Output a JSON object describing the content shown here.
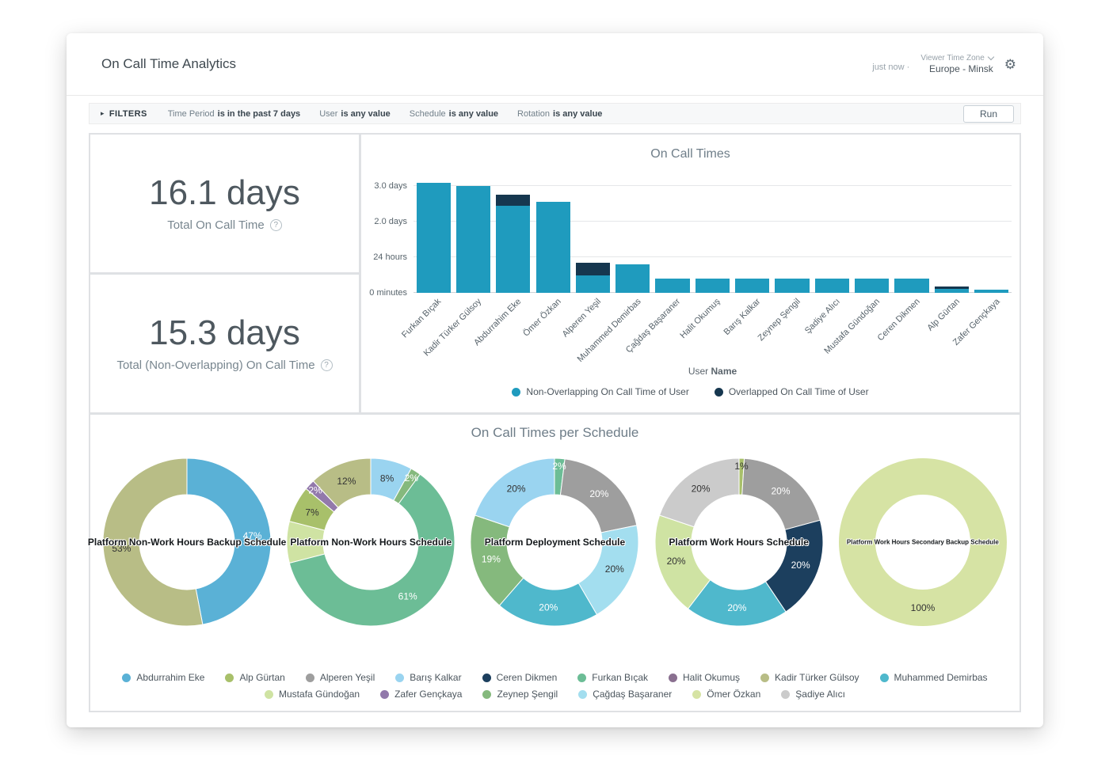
{
  "header": {
    "title": "On Call Time Analytics",
    "updated": "just now",
    "separator": "·",
    "timezone_label": "Viewer Time Zone",
    "timezone_value": "Europe - Minsk"
  },
  "icons": {
    "gear": "⚙",
    "triangle": "▸",
    "info": "?"
  },
  "filters": {
    "label": "FILTERS",
    "items": [
      {
        "label": "Time Period",
        "value": "is in the past 7 days"
      },
      {
        "label": "User",
        "value": "is any value"
      },
      {
        "label": "Schedule",
        "value": "is any value"
      },
      {
        "label": "Rotation",
        "value": "is any value"
      }
    ],
    "run_label": "Run"
  },
  "kpis": [
    {
      "value": "16.1 days",
      "label": "Total On Call Time"
    },
    {
      "value": "15.3 days",
      "label": "Total (Non-Overlapping) On Call Time"
    }
  ],
  "palette": {
    "Abdurrahim Eke": "#5AB1D6",
    "Alp Gürtan": "#A8C06A",
    "Alperen Yeşil": "#9E9E9E",
    "Barış Kalkar": "#9AD4F0",
    "Ceren Dikmen": "#1C3F5E",
    "Furkan Bıçak": "#6CBD96",
    "Halit Okumuş": "#8A7090",
    "Kadir Türker Gülsoy": "#B8BD86",
    "Muhammed Demirbas": "#4FB8CC",
    "Mustafa Gündoğan": "#CFE3A3",
    "Zafer Gençkaya": "#9279AB",
    "Zeynep Şengil": "#85B97D",
    "Çağdaş Başaraner": "#A3DEEF",
    "Ömer Özkan": "#D6E3A4",
    "Şadiye Alıcı": "#CBCBCB"
  },
  "chart_data": [
    {
      "type": "bar",
      "title": "On Call Times",
      "categories": [
        "Furkan Bıçak",
        "Kadir Türker Gülsoy",
        "Abdurrahim Eke",
        "Ömer Özkan",
        "Alperen Yeşil",
        "Muhammed Demirbas",
        "Çağdaş Başaraner",
        "Halit Okumuş",
        "Barış Kalkar",
        "Zeynep Şengil",
        "Şadiye Alıcı",
        "Mustafa Gündoğan",
        "Ceren Dikmen",
        "Alp Gürtan",
        "Zafer Gençkaya"
      ],
      "series": [
        {
          "name": "Non-Overlapping On Call Time of User",
          "color": "#1F9BBE",
          "values_days": [
            3.1,
            3.0,
            2.45,
            2.55,
            0.5,
            0.8,
            0.4,
            0.4,
            0.4,
            0.4,
            0.4,
            0.4,
            0.4,
            0.12,
            0.08
          ]
        },
        {
          "name": "Overlapped On Call Time of User",
          "color": "#16374F",
          "values_days": [
            0,
            0,
            0.3,
            0,
            0.35,
            0,
            0,
            0,
            0,
            0,
            0,
            0,
            0,
            0.05,
            0
          ]
        }
      ],
      "xlabel_normal": "User",
      "xlabel_bold": "Name",
      "y_ticks": [
        {
          "label": "0 minutes",
          "days": 0
        },
        {
          "label": "24 hours",
          "days": 1
        },
        {
          "label": "2.0 days",
          "days": 2
        },
        {
          "label": "3.0 days",
          "days": 3
        }
      ],
      "ylim_days": [
        0,
        3.33
      ],
      "grid": true,
      "legend_position": "bottom"
    },
    {
      "type": "pie",
      "section_title": "On Call Times per Schedule",
      "donuts": [
        {
          "title": "Platform Non-Work Hours Backup Schedule",
          "segments": [
            {
              "person": "Abdurrahim Eke",
              "pct": 47,
              "label": "47%"
            },
            {
              "person": "Kadir Türker Gülsoy",
              "pct": 53,
              "label": "53%"
            }
          ]
        },
        {
          "title": "Platform Non-Work Hours Schedule",
          "segments": [
            {
              "person": "Barış Kalkar",
              "pct": 8,
              "label": "8%"
            },
            {
              "person": "Zeynep Şengil",
              "pct": 2,
              "label": "2%"
            },
            {
              "person": "Furkan Bıçak",
              "pct": 61,
              "label": "61%"
            },
            {
              "person": "Mustafa Gündoğan",
              "pct": 8,
              "label": ""
            },
            {
              "person": "Alp Gürtan",
              "pct": 7,
              "label": "7%"
            },
            {
              "person": "Zafer Gençkaya",
              "pct": 2,
              "label": "2%"
            },
            {
              "person": "Kadir Türker Gülsoy",
              "pct": 12,
              "label": "12%"
            }
          ]
        },
        {
          "title": "Platform Deployment Schedule",
          "segments": [
            {
              "person": "Furkan Bıçak",
              "pct": 2,
              "label": "2%"
            },
            {
              "person": "Alperen Yeşil",
              "pct": 20,
              "label": "20%"
            },
            {
              "person": "Çağdaş Başaraner",
              "pct": 20,
              "label": "20%"
            },
            {
              "person": "Muhammed Demirbas",
              "pct": 20,
              "label": "20%"
            },
            {
              "person": "Zeynep Şengil",
              "pct": 19,
              "label": "19%"
            },
            {
              "person": "Barış Kalkar",
              "pct": 20,
              "label": "20%"
            }
          ]
        },
        {
          "title": "Platform Work Hours Schedule",
          "segments": [
            {
              "person": "Alp Gürtan",
              "pct": 1,
              "label": "1%"
            },
            {
              "person": "Alperen Yeşil",
              "pct": 20,
              "label": "20%"
            },
            {
              "person": "Ceren Dikmen",
              "pct": 20,
              "label": "20%"
            },
            {
              "person": "Muhammed Demirbas",
              "pct": 20,
              "label": "20%"
            },
            {
              "person": "Mustafa Gündoğan",
              "pct": 20,
              "label": "20%"
            },
            {
              "person": "Şadiye Alıcı",
              "pct": 20,
              "label": "20%"
            }
          ]
        },
        {
          "title": "Platform Work Hours Secondary Backup Schedule",
          "segments": [
            {
              "person": "Ömer Özkan",
              "pct": 100,
              "label": "100%"
            }
          ]
        }
      ]
    }
  ],
  "legend": {
    "rows": [
      [
        "Abdurrahim Eke",
        "Alp Gürtan",
        "Alperen Yeşil",
        "Barış Kalkar",
        "Ceren Dikmen",
        "Furkan Bıçak",
        "Halit Okumuş",
        "Kadir Türker Gülsoy",
        "Muhammed Demirbas"
      ],
      [
        "Mustafa Gündoğan",
        "Zafer Gençkaya",
        "Zeynep Şengil",
        "Çağdaş Başaraner",
        "Ömer Özkan",
        "Şadiye Alıcı"
      ]
    ]
  }
}
